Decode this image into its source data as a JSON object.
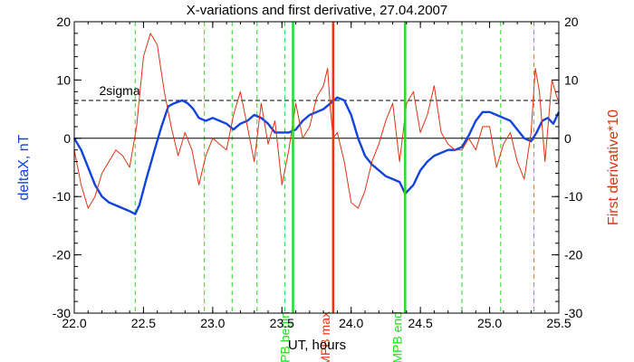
{
  "chart_data": {
    "type": "line",
    "title": "X-variations and first derivative, 27.04.2007",
    "xlabel": "UT, hours",
    "ylabel_left": "deltaX, nT",
    "ylabel_right": "First derivative*10",
    "xlim": [
      22.0,
      25.5
    ],
    "ylim": [
      -30,
      20
    ],
    "x_ticks": [
      22.0,
      22.5,
      23.0,
      23.5,
      24.0,
      24.5,
      25.0,
      25.5
    ],
    "x_tick_labels": [
      "22.0",
      "22.5",
      "23.0",
      "23.5",
      "24.0",
      "24.5",
      "25.0",
      "25.5"
    ],
    "y_ticks": [
      -30,
      -20,
      -10,
      0,
      10,
      20
    ],
    "y_tick_labels": [
      "-30",
      "-20",
      "-10",
      "0",
      "10",
      "20"
    ],
    "threshold": {
      "label": "2sigma",
      "value": 6.5
    },
    "zero_line": 0,
    "dashed_verticals": [
      22.44,
      22.94,
      23.14,
      23.32,
      23.52,
      24.8,
      25.08,
      25.32
    ],
    "markers": [
      {
        "label": "MPB begin",
        "x": 23.58,
        "color": "#22dd22"
      },
      {
        "label": "MPB max",
        "x": 23.87,
        "color": "#ee3311"
      },
      {
        "label": "MPB end",
        "x": 24.39,
        "color": "#22dd22"
      }
    ],
    "series": [
      {
        "color": "#1144dd",
        "x": [
          22.0,
          22.05,
          22.1,
          22.15,
          22.2,
          22.25,
          22.3,
          22.35,
          22.4,
          22.44,
          22.47,
          22.52,
          22.58,
          22.63,
          22.68,
          22.72,
          22.78,
          22.82,
          22.86,
          22.9,
          22.95,
          23.0,
          23.05,
          23.1,
          23.15,
          23.2,
          23.25,
          23.3,
          23.35,
          23.4,
          23.45,
          23.5,
          23.55,
          23.6,
          23.65,
          23.7,
          23.75,
          23.8,
          23.85,
          23.9,
          23.95,
          24.0,
          24.05,
          24.1,
          24.15,
          24.2,
          24.25,
          24.3,
          24.35,
          24.39,
          24.45,
          24.5,
          24.55,
          24.6,
          24.65,
          24.7,
          24.75,
          24.8,
          24.85,
          24.9,
          24.95,
          25.0,
          25.05,
          25.1,
          25.15,
          25.2,
          25.25,
          25.3,
          25.34,
          25.38,
          25.42,
          25.46,
          25.5
        ],
        "values": [
          0,
          -2,
          -5,
          -8,
          -10,
          -11,
          -11.5,
          -12,
          -12.5,
          -13,
          -11.5,
          -7,
          -2,
          2,
          5.5,
          6,
          6.5,
          6,
          5,
          3.5,
          3,
          3.5,
          3,
          2.5,
          1.5,
          2.5,
          3,
          4,
          3.5,
          2.5,
          1,
          1,
          1,
          1.5,
          3,
          4,
          4.5,
          5,
          6,
          7,
          6.5,
          4,
          0,
          -3,
          -4.5,
          -5.5,
          -6.5,
          -7,
          -7.5,
          -9.5,
          -8,
          -5.5,
          -4,
          -3,
          -2.5,
          -2,
          -2,
          -1.5,
          0.5,
          3,
          4.5,
          4.5,
          4,
          3.5,
          3,
          1.5,
          0,
          -0.5,
          1,
          3,
          3.5,
          2.5,
          4.5
        ]
      },
      {
        "color": "#dd3311",
        "x": [
          22.0,
          22.05,
          22.1,
          22.15,
          22.2,
          22.25,
          22.3,
          22.35,
          22.4,
          22.45,
          22.5,
          22.55,
          22.6,
          22.65,
          22.7,
          22.75,
          22.8,
          22.85,
          22.9,
          22.95,
          23.0,
          23.05,
          23.1,
          23.15,
          23.2,
          23.25,
          23.3,
          23.35,
          23.4,
          23.45,
          23.5,
          23.55,
          23.6,
          23.65,
          23.7,
          23.75,
          23.8,
          23.83,
          23.85,
          23.87,
          23.9,
          23.95,
          24.0,
          24.05,
          24.1,
          24.15,
          24.2,
          24.25,
          24.3,
          24.35,
          24.4,
          24.45,
          24.5,
          24.55,
          24.6,
          24.65,
          24.7,
          24.75,
          24.8,
          24.85,
          24.9,
          24.95,
          25.0,
          25.05,
          25.1,
          25.15,
          25.2,
          25.25,
          25.3,
          25.33,
          25.36,
          25.4,
          25.45,
          25.5
        ],
        "values": [
          -2,
          -8,
          -12,
          -10,
          -6,
          -4,
          -2,
          -3,
          -5,
          2,
          14,
          18,
          16,
          8,
          2,
          -3,
          1,
          -2,
          -8,
          -3,
          0,
          -1,
          -2,
          4,
          8,
          2,
          -4,
          6,
          -1,
          3,
          -8,
          -2,
          6,
          0,
          2,
          7,
          9,
          12,
          5,
          0,
          1,
          -4,
          -11,
          -12,
          -9,
          -4,
          -1,
          3,
          6,
          -4,
          6,
          8,
          1,
          4,
          9,
          1,
          -1,
          -2,
          -2,
          0,
          -2,
          2,
          2,
          -5,
          -1,
          1,
          -4,
          -7,
          1,
          12,
          8,
          -4,
          10,
          6
        ]
      }
    ]
  }
}
